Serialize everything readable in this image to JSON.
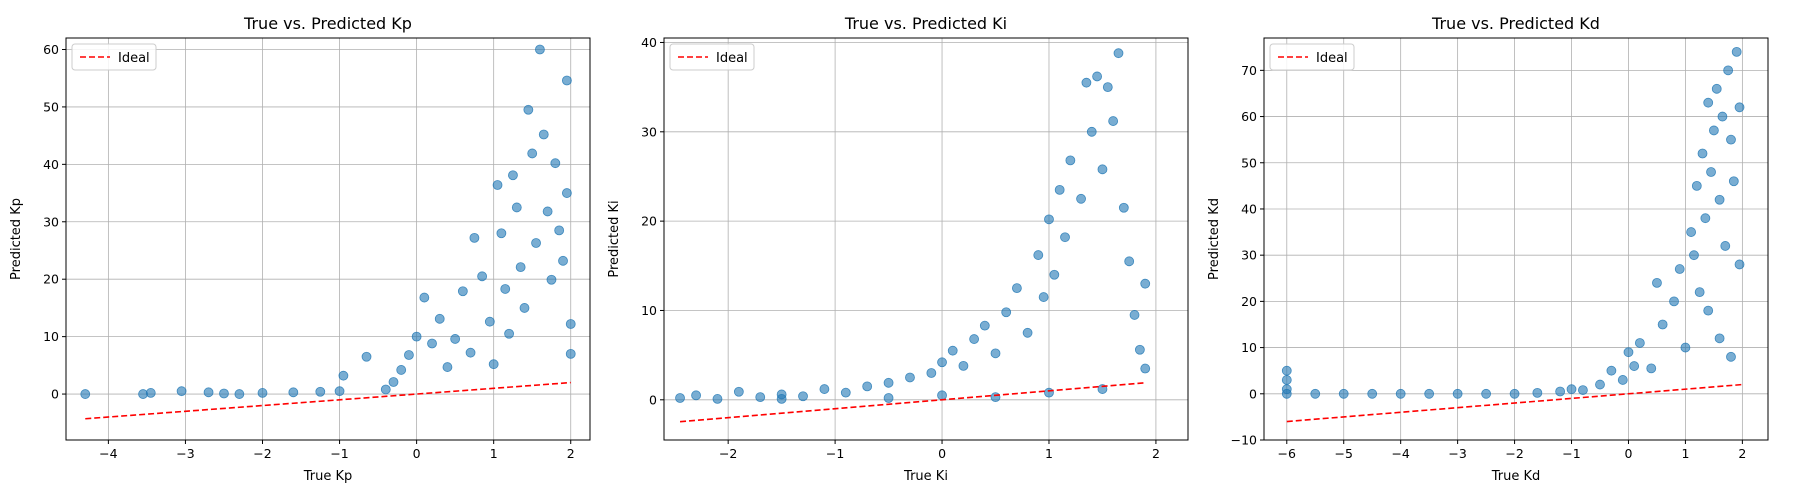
{
  "chart_data": [
    {
      "type": "scatter",
      "title": "True vs. Predicted Kp",
      "xlabel": "True Kp",
      "ylabel": "Predicted Kp",
      "xlim": [
        -4.55,
        2.25
      ],
      "ylim": [
        -8,
        62
      ],
      "xticks": [
        -4,
        -3,
        -2,
        -1,
        0,
        1,
        2
      ],
      "yticks": [
        0,
        10,
        20,
        30,
        40,
        50,
        60
      ],
      "grid": true,
      "legend": {
        "position": "top-left",
        "entries": [
          "Ideal"
        ]
      },
      "series": [
        {
          "name": "",
          "kind": "points",
          "color": "#1f77b4",
          "points": [
            [
              -4.3,
              0
            ],
            [
              -3.55,
              0
            ],
            [
              -3.45,
              0.2
            ],
            [
              -3.05,
              0.5
            ],
            [
              -2.7,
              0.3
            ],
            [
              -2.5,
              0.1
            ],
            [
              -2.3,
              0
            ],
            [
              -2.0,
              0.2
            ],
            [
              -1.6,
              0.3
            ],
            [
              -1.25,
              0.4
            ],
            [
              -1.0,
              0.5
            ],
            [
              -0.95,
              3.2
            ],
            [
              -0.65,
              6.5
            ],
            [
              -0.4,
              0.8
            ],
            [
              -0.3,
              2.1
            ],
            [
              -0.2,
              4.2
            ],
            [
              -0.1,
              6.8
            ],
            [
              0.0,
              10.0
            ],
            [
              0.1,
              16.8
            ],
            [
              0.2,
              8.8
            ],
            [
              0.3,
              13.1
            ],
            [
              0.4,
              4.7
            ],
            [
              0.5,
              9.6
            ],
            [
              0.6,
              17.9
            ],
            [
              0.7,
              7.2
            ],
            [
              0.75,
              27.2
            ],
            [
              0.85,
              20.5
            ],
            [
              0.95,
              12.6
            ],
            [
              1.0,
              5.2
            ],
            [
              1.05,
              36.4
            ],
            [
              1.1,
              28.0
            ],
            [
              1.15,
              18.3
            ],
            [
              1.2,
              10.5
            ],
            [
              1.25,
              38.1
            ],
            [
              1.3,
              32.5
            ],
            [
              1.35,
              22.1
            ],
            [
              1.4,
              15.0
            ],
            [
              1.45,
              49.5
            ],
            [
              1.5,
              41.9
            ],
            [
              1.55,
              26.3
            ],
            [
              1.6,
              60.0
            ],
            [
              1.65,
              45.2
            ],
            [
              1.7,
              31.8
            ],
            [
              1.75,
              19.9
            ],
            [
              1.8,
              40.2
            ],
            [
              1.85,
              28.5
            ],
            [
              1.9,
              23.2
            ],
            [
              1.95,
              54.6
            ],
            [
              1.95,
              35.0
            ],
            [
              2.0,
              12.2
            ],
            [
              2.0,
              7.0
            ]
          ]
        },
        {
          "name": "Ideal",
          "kind": "line",
          "color": "#ff0000",
          "style": "dashed",
          "points": [
            [
              -4.3,
              -4.3
            ],
            [
              2.0,
              2.0
            ]
          ]
        }
      ]
    },
    {
      "type": "scatter",
      "title": "True vs. Predicted Ki",
      "xlabel": "True Ki",
      "ylabel": "Predicted Ki",
      "xlim": [
        -2.6,
        2.3
      ],
      "ylim": [
        -4.5,
        40.5
      ],
      "xticks": [
        -2,
        -1,
        0,
        1,
        2
      ],
      "yticks": [
        0,
        10,
        20,
        30,
        40
      ],
      "grid": true,
      "legend": {
        "position": "top-left",
        "entries": [
          "Ideal"
        ]
      },
      "series": [
        {
          "name": "",
          "kind": "points",
          "color": "#1f77b4",
          "points": [
            [
              -2.45,
              0.2
            ],
            [
              -2.3,
              0.5
            ],
            [
              -2.1,
              0.1
            ],
            [
              -1.9,
              0.9
            ],
            [
              -1.7,
              0.3
            ],
            [
              -1.5,
              0.6
            ],
            [
              -1.3,
              0.4
            ],
            [
              -1.1,
              1.2
            ],
            [
              -0.9,
              0.8
            ],
            [
              -0.7,
              1.5
            ],
            [
              -0.5,
              1.9
            ],
            [
              -0.3,
              2.5
            ],
            [
              -0.1,
              3.0
            ],
            [
              0.0,
              4.2
            ],
            [
              0.1,
              5.5
            ],
            [
              0.2,
              3.8
            ],
            [
              0.3,
              6.8
            ],
            [
              0.4,
              8.3
            ],
            [
              0.5,
              5.2
            ],
            [
              0.6,
              9.8
            ],
            [
              0.7,
              12.5
            ],
            [
              0.8,
              7.5
            ],
            [
              0.9,
              16.2
            ],
            [
              0.95,
              11.5
            ],
            [
              1.0,
              20.2
            ],
            [
              1.05,
              14.0
            ],
            [
              1.1,
              23.5
            ],
            [
              1.15,
              18.2
            ],
            [
              1.2,
              26.8
            ],
            [
              1.3,
              22.5
            ],
            [
              1.35,
              35.5
            ],
            [
              1.4,
              30.0
            ],
            [
              1.45,
              36.2
            ],
            [
              1.5,
              25.8
            ],
            [
              1.55,
              35.0
            ],
            [
              1.6,
              31.2
            ],
            [
              1.65,
              38.8
            ],
            [
              1.7,
              21.5
            ],
            [
              1.75,
              15.5
            ],
            [
              1.8,
              9.5
            ],
            [
              1.85,
              5.6
            ],
            [
              1.9,
              13.0
            ],
            [
              1.9,
              3.5
            ],
            [
              0.5,
              0.3
            ],
            [
              1.0,
              0.8
            ],
            [
              1.5,
              1.2
            ],
            [
              -0.5,
              0.2
            ],
            [
              -1.5,
              0.1
            ],
            [
              0.0,
              0.5
            ]
          ]
        },
        {
          "name": "Ideal",
          "kind": "line",
          "color": "#ff0000",
          "style": "dashed",
          "points": [
            [
              -2.45,
              -2.45
            ],
            [
              1.9,
              1.9
            ]
          ]
        }
      ]
    },
    {
      "type": "scatter",
      "title": "True vs. Predicted Kd",
      "xlabel": "True Kd",
      "ylabel": "Predicted Kd",
      "xlim": [
        -6.4,
        2.45
      ],
      "ylim": [
        -10,
        77
      ],
      "xticks": [
        -6,
        -5,
        -4,
        -3,
        -2,
        -1,
        0,
        1,
        2
      ],
      "yticks": [
        -10,
        0,
        10,
        20,
        30,
        40,
        50,
        60,
        70
      ],
      "grid": true,
      "legend": {
        "position": "top-left",
        "entries": [
          "Ideal"
        ]
      },
      "series": [
        {
          "name": "",
          "kind": "points",
          "color": "#1f77b4",
          "points": [
            [
              -6.0,
              5.0
            ],
            [
              -6.0,
              3.0
            ],
            [
              -6.0,
              1.0
            ],
            [
              -6.0,
              0
            ],
            [
              -5.5,
              0
            ],
            [
              -5.0,
              0
            ],
            [
              -4.5,
              0
            ],
            [
              -4.0,
              0
            ],
            [
              -3.5,
              0
            ],
            [
              -3.0,
              0
            ],
            [
              -2.5,
              0
            ],
            [
              -2.0,
              0
            ],
            [
              -1.6,
              0.2
            ],
            [
              -1.2,
              0.5
            ],
            [
              -1.0,
              1.0
            ],
            [
              -0.8,
              0.8
            ],
            [
              -0.5,
              2.0
            ],
            [
              -0.3,
              5.0
            ],
            [
              -0.1,
              3.0
            ],
            [
              0.0,
              9.0
            ],
            [
              0.1,
              6.0
            ],
            [
              0.2,
              11.0
            ],
            [
              0.4,
              5.5
            ],
            [
              0.5,
              24.0
            ],
            [
              0.6,
              15.0
            ],
            [
              0.8,
              20.0
            ],
            [
              0.9,
              27.0
            ],
            [
              1.0,
              10.0
            ],
            [
              1.1,
              35.0
            ],
            [
              1.15,
              30.0
            ],
            [
              1.2,
              45.0
            ],
            [
              1.25,
              22.0
            ],
            [
              1.3,
              52.0
            ],
            [
              1.35,
              38.0
            ],
            [
              1.4,
              63.0
            ],
            [
              1.45,
              48.0
            ],
            [
              1.5,
              57.0
            ],
            [
              1.55,
              66.0
            ],
            [
              1.6,
              42.0
            ],
            [
              1.65,
              60.0
            ],
            [
              1.7,
              32.0
            ],
            [
              1.75,
              70.0
            ],
            [
              1.8,
              55.0
            ],
            [
              1.85,
              46.0
            ],
            [
              1.9,
              74.0
            ],
            [
              1.95,
              62.0
            ],
            [
              1.95,
              28.0
            ],
            [
              1.6,
              12.0
            ],
            [
              1.8,
              8.0
            ],
            [
              1.4,
              18.0
            ]
          ]
        },
        {
          "name": "Ideal",
          "kind": "line",
          "color": "#ff0000",
          "style": "dashed",
          "points": [
            [
              -6.0,
              -6.0
            ],
            [
              2.0,
              2.0
            ]
          ]
        }
      ]
    }
  ]
}
